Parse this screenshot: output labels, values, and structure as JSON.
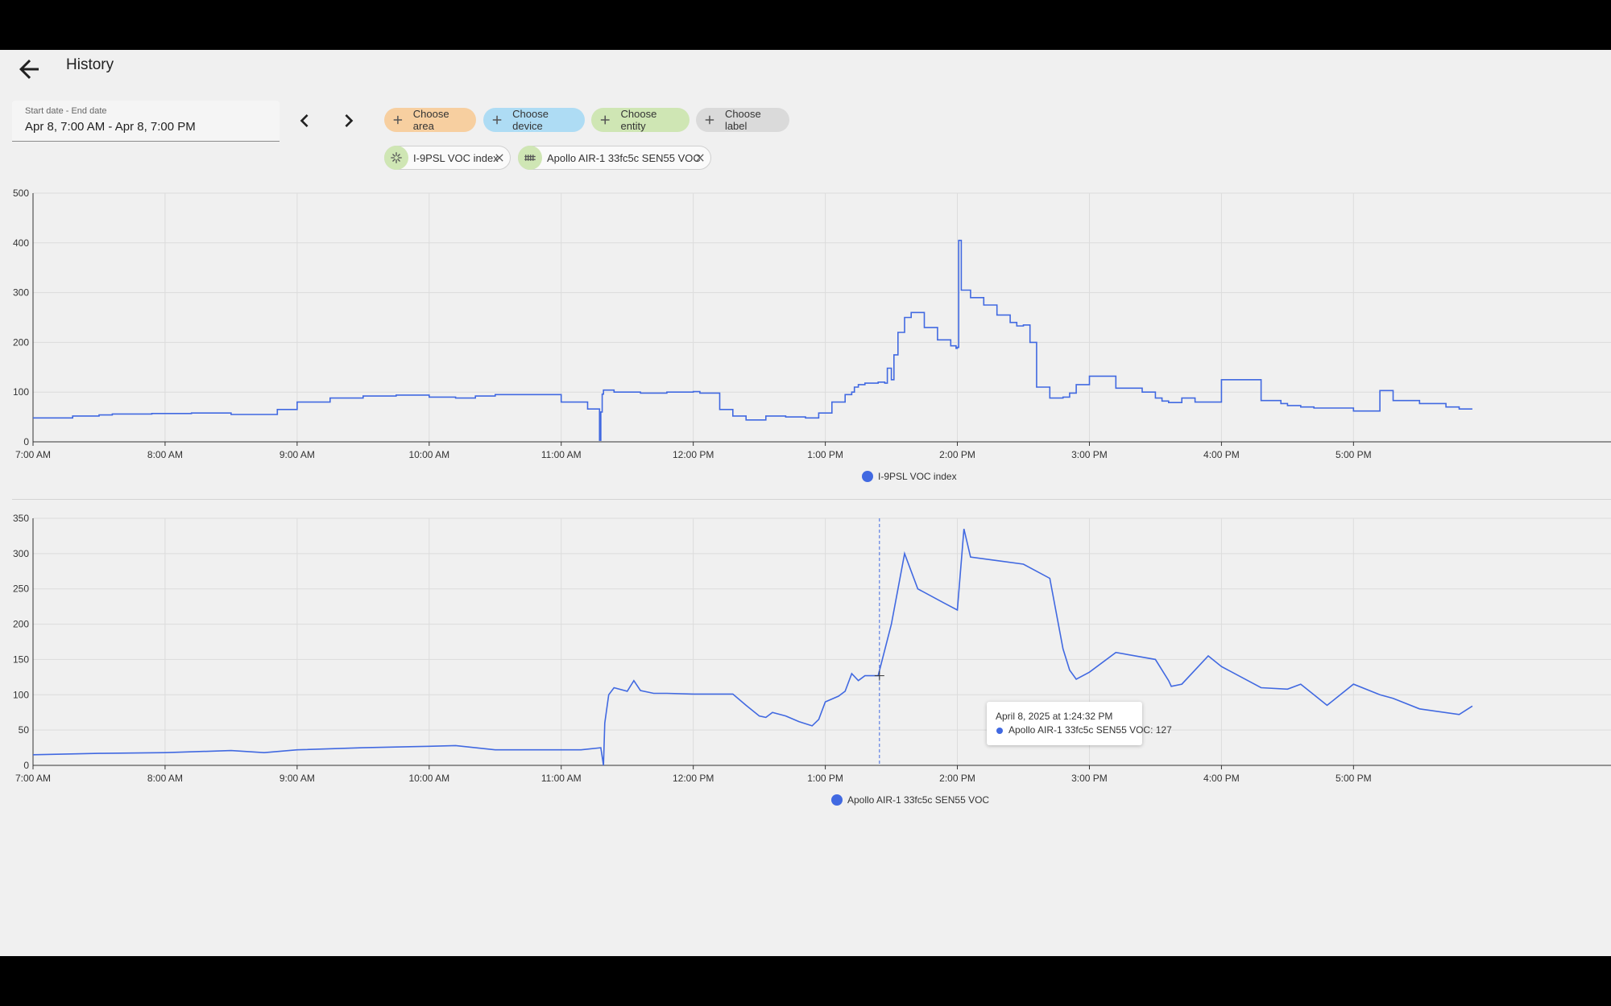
{
  "header": {
    "title": "History",
    "back_icon": "arrow-left-icon"
  },
  "date_range": {
    "label": "Start date - End date",
    "value": "Apr 8, 7:00 AM - Apr 8, 7:00 PM"
  },
  "nav": {
    "prev_icon": "chevron-left-icon",
    "next_icon": "chevron-right-icon"
  },
  "target_pickers": [
    {
      "label": "Choose area",
      "color": "#f7cfa0"
    },
    {
      "label": "Choose device",
      "color": "#aedcf4"
    },
    {
      "label": "Choose entity",
      "color": "#cfe6b4"
    },
    {
      "label": "Choose label",
      "color": "#dadada"
    }
  ],
  "selected": [
    {
      "label": "I-9PSL VOC index",
      "icon": "air-filter-icon"
    },
    {
      "label": "Apollo AIR-1 33fc5c SEN55 VOC",
      "icon": "radiator-icon"
    }
  ],
  "colors": {
    "series": "#4169e1",
    "grid": "#dcdcdc",
    "axis": "#333333"
  },
  "chart_data": [
    {
      "type": "line",
      "step": true,
      "ylim": [
        0,
        500
      ],
      "yticks": [
        "0",
        "100",
        "200",
        "300",
        "400",
        "500"
      ],
      "xlim": [
        7,
        18.95
      ],
      "xticks": [
        "7:00 AM",
        "8:00 AM",
        "9:00 AM",
        "10:00 AM",
        "11:00 AM",
        "12:00 PM",
        "1:00 PM",
        "2:00 PM",
        "3:00 PM",
        "4:00 PM",
        "5:00 PM"
      ],
      "series": [
        {
          "name": "I-9PSL VOC index",
          "x": [
            7.0,
            7.3,
            7.5,
            7.6,
            7.9,
            8.2,
            8.5,
            8.8,
            8.85,
            9.0,
            9.25,
            9.5,
            9.75,
            10.0,
            10.2,
            10.35,
            10.5,
            10.8,
            11.0,
            11.2,
            11.28,
            11.29,
            11.3,
            11.31,
            11.32,
            11.4,
            11.6,
            11.8,
            12.0,
            12.05,
            12.2,
            12.3,
            12.4,
            12.55,
            12.7,
            12.85,
            12.95,
            13.05,
            13.15,
            13.2,
            13.22,
            13.25,
            13.3,
            13.4,
            13.45,
            13.47,
            13.5,
            13.52,
            13.55,
            13.6,
            13.65,
            13.75,
            13.85,
            13.95,
            13.99,
            14.0,
            14.01,
            14.03,
            14.1,
            14.2,
            14.3,
            14.4,
            14.45,
            14.5,
            14.55,
            14.6,
            14.7,
            14.8,
            14.85,
            14.9,
            15.0,
            15.2,
            15.4,
            15.5,
            15.55,
            15.6,
            15.7,
            15.8,
            16.0,
            16.3,
            16.45,
            16.5,
            16.6,
            16.7,
            17.0,
            17.15,
            17.2,
            17.3,
            17.5,
            17.7,
            17.8,
            17.9
          ],
          "y": [
            48,
            52,
            54,
            56,
            57,
            58,
            55,
            55,
            65,
            80,
            88,
            92,
            94,
            90,
            88,
            92,
            95,
            95,
            80,
            66,
            66,
            3,
            60,
            96,
            104,
            100,
            98,
            100,
            101,
            98,
            65,
            52,
            44,
            52,
            50,
            48,
            58,
            80,
            95,
            100,
            110,
            115,
            118,
            120,
            118,
            148,
            125,
            175,
            220,
            250,
            260,
            230,
            205,
            193,
            188,
            190,
            405,
            305,
            290,
            275,
            255,
            240,
            233,
            235,
            200,
            110,
            88,
            90,
            98,
            115,
            132,
            108,
            100,
            88,
            82,
            79,
            88,
            80,
            125,
            83,
            77,
            73,
            70,
            68,
            62,
            62,
            103,
            83,
            77,
            70,
            66,
            66
          ]
        }
      ],
      "legend": "bottom-center"
    },
    {
      "type": "line",
      "ylim": [
        0,
        350
      ],
      "yticks": [
        "0",
        "50",
        "100",
        "150",
        "200",
        "250",
        "300",
        "350"
      ],
      "xlim": [
        7,
        18.95
      ],
      "xticks": [
        "7:00 AM",
        "8:00 AM",
        "9:00 AM",
        "10:00 AM",
        "11:00 AM",
        "12:00 PM",
        "1:00 PM",
        "2:00 PM",
        "3:00 PM",
        "4:00 PM",
        "5:00 PM"
      ],
      "series": [
        {
          "name": "Apollo AIR-1 33fc5c SEN55 VOC",
          "x": [
            7.0,
            7.5,
            8.0,
            8.5,
            8.75,
            9.0,
            9.5,
            10.0,
            10.2,
            10.5,
            11.0,
            11.15,
            11.3,
            11.32,
            11.33,
            11.36,
            11.4,
            11.5,
            11.55,
            11.6,
            11.7,
            11.8,
            12.0,
            12.3,
            12.4,
            12.5,
            12.55,
            12.6,
            12.7,
            12.8,
            12.9,
            12.95,
            13.0,
            13.1,
            13.15,
            13.2,
            13.25,
            13.3,
            13.4,
            13.5,
            13.6,
            13.7,
            13.9,
            14.0,
            14.05,
            14.1,
            14.3,
            14.5,
            14.7,
            14.8,
            14.85,
            14.9,
            15.0,
            15.2,
            15.5,
            15.6,
            15.62,
            15.7,
            15.9,
            16.0,
            16.3,
            16.5,
            16.6,
            16.7,
            16.8,
            17.0,
            17.2,
            17.3,
            17.5,
            17.8,
            17.9
          ],
          "y": [
            15,
            17,
            18,
            21,
            18,
            22,
            25,
            27,
            28,
            22,
            22,
            22,
            25,
            0,
            60,
            100,
            110,
            105,
            120,
            106,
            102,
            102,
            101,
            101,
            85,
            70,
            68,
            75,
            70,
            62,
            56,
            65,
            90,
            98,
            105,
            130,
            120,
            127,
            127,
            200,
            300,
            250,
            230,
            220,
            335,
            295,
            290,
            285,
            265,
            165,
            135,
            122,
            132,
            160,
            150,
            120,
            112,
            115,
            155,
            140,
            110,
            108,
            115,
            100,
            85,
            115,
            100,
            95,
            80,
            72,
            84
          ]
        }
      ],
      "legend": "bottom-center",
      "tooltip": {
        "time": "April 8, 2025 at 1:24:32 PM",
        "text": "Apollo AIR-1 33fc5c SEN55 VOC: 127",
        "x": 13.41
      }
    }
  ]
}
